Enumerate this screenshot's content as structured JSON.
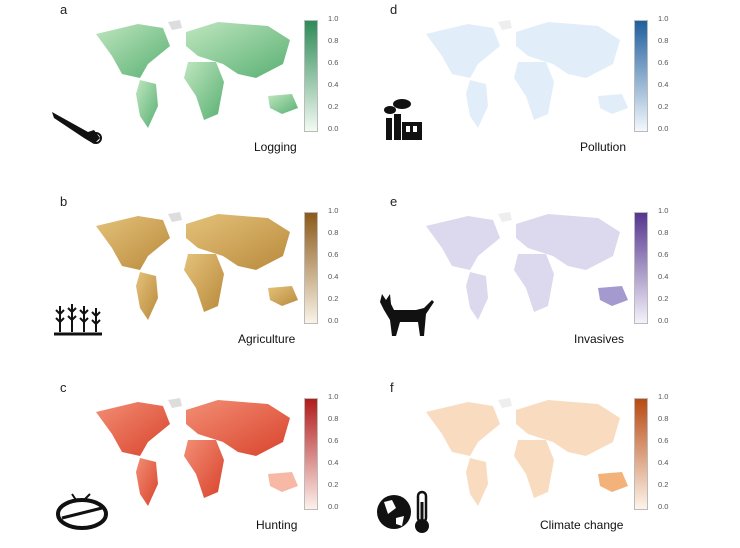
{
  "panels": [
    {
      "id": "a",
      "letter": "a",
      "driver": "Logging",
      "colors": [
        "#f2faf2",
        "#2e8b57"
      ],
      "icon": "chainsaw-icon"
    },
    {
      "id": "d",
      "letter": "d",
      "driver": "Pollution",
      "colors": [
        "#f3f8fd",
        "#1f5f9e"
      ],
      "icon": "factory-icon"
    },
    {
      "id": "b",
      "letter": "b",
      "driver": "Agriculture",
      "colors": [
        "#faf3e6",
        "#8b5a1a"
      ],
      "icon": "crops-icon"
    },
    {
      "id": "e",
      "letter": "e",
      "driver": "Invasives",
      "colors": [
        "#f4f2fa",
        "#55368f"
      ],
      "icon": "cat-icon"
    },
    {
      "id": "c",
      "letter": "c",
      "driver": "Hunting",
      "colors": [
        "#fdf0ec",
        "#b01c1c"
      ],
      "icon": "snare-trap-icon"
    },
    {
      "id": "f",
      "letter": "f",
      "driver": "Climate change",
      "colors": [
        "#fdf4ea",
        "#b84a12"
      ],
      "icon": "globe-thermometer-icon"
    }
  ],
  "colorbar_ticks": [
    "1.0",
    "0.8",
    "0.6",
    "0.4",
    "0.2",
    "0.0"
  ],
  "colorbar_range": [
    0,
    1
  ]
}
